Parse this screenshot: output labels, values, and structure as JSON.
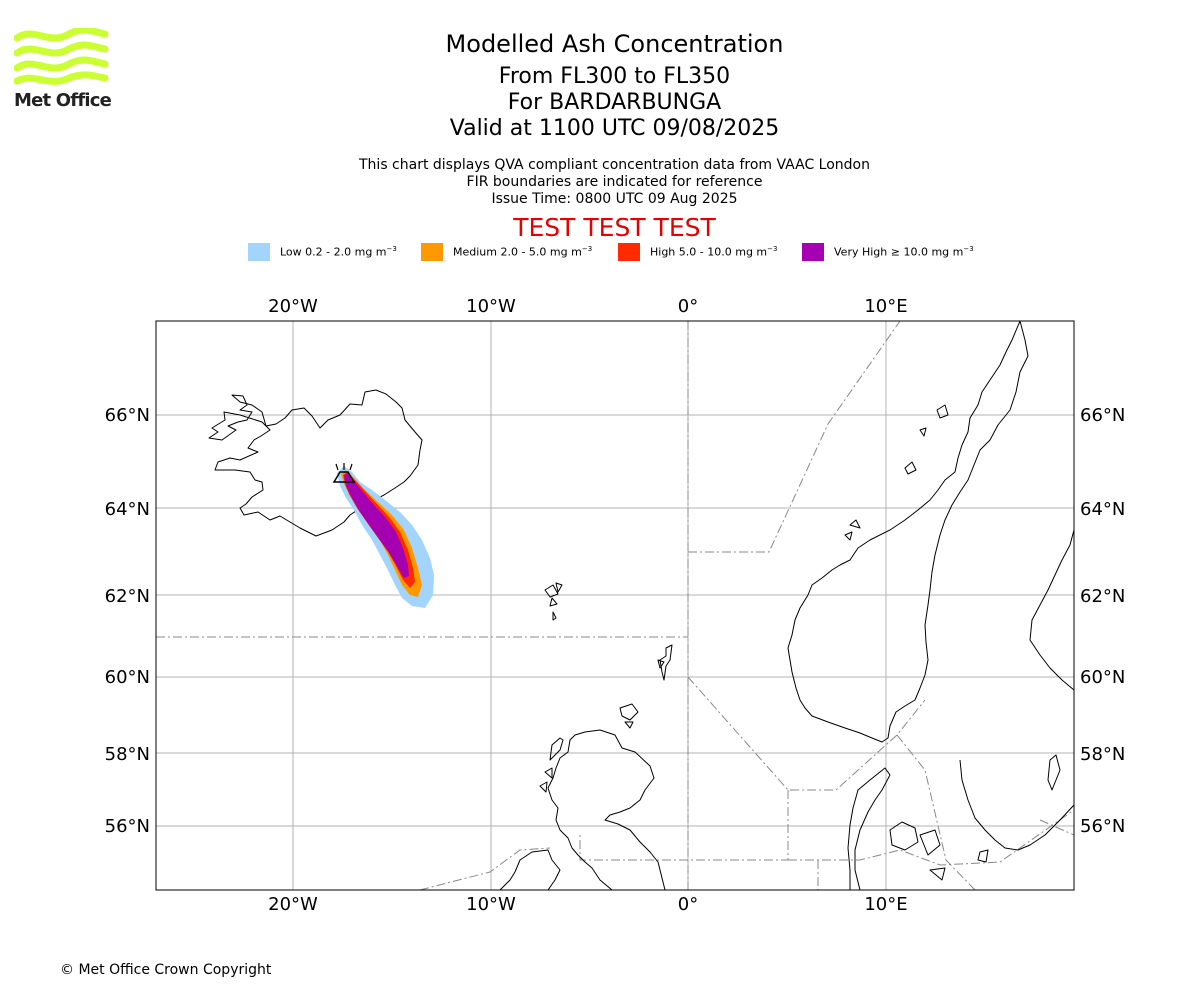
{
  "logo": {
    "text": "Met Office",
    "color": "#ccff33"
  },
  "title": {
    "main": "Modelled Ash Concentration",
    "levels": "From FL300 to FL350",
    "volcano": "For BARDARBUNGA",
    "valid": "Valid at 1100 UTC 09/08/2025"
  },
  "subtitle": {
    "line1": "This chart displays QVA compliant concentration data from VAAC London",
    "line2": "FIR boundaries are indicated for reference",
    "line3": "Issue Time: 0800 UTC 09 Aug 2025"
  },
  "banner": {
    "text": "TEST TEST TEST",
    "color": "#e60000"
  },
  "legend": [
    {
      "label": "Low 0.2 - 2.0 mg m",
      "color": "#a3d4fb"
    },
    {
      "label": "Medium 2.0 - 5.0 mg m",
      "color": "#ff9900"
    },
    {
      "label": "High 5.0 - 10.0 mg m",
      "color": "#ff2a00"
    },
    {
      "label": "Very High ≥ 10.0 mg m",
      "color": "#a600b3"
    }
  ],
  "legend_unit_exponent": "−3",
  "map": {
    "lon_labels": [
      "20°W",
      "10°W",
      "0°",
      "10°E"
    ],
    "lat_labels": [
      "66°N",
      "64°N",
      "62°N",
      "60°N",
      "58°N",
      "56°N"
    ]
  },
  "copyright": "© Met Office Crown Copyright"
}
